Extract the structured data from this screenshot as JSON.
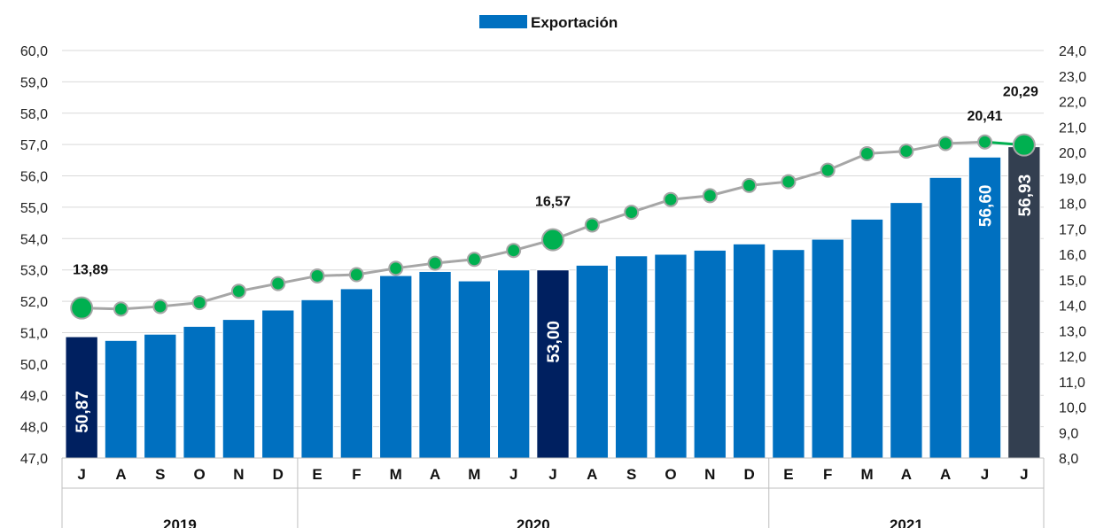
{
  "chart_data": {
    "type": "bar",
    "legend": {
      "label": "Exportación",
      "position": "top-center"
    },
    "colors": {
      "bar": "#0070c0",
      "bar_highlight": "#002060",
      "bar_last": "#333f50",
      "line": "#a6a6a6",
      "line_recent": "#00b050",
      "marker": "#00b050",
      "grid": "#d9d9d9"
    },
    "categories": [
      "J",
      "A",
      "S",
      "O",
      "N",
      "D",
      "E",
      "F",
      "M",
      "A",
      "M",
      "J",
      "J",
      "A",
      "S",
      "O",
      "N",
      "D",
      "E",
      "F",
      "M",
      "A",
      "A",
      "J",
      "J"
    ],
    "years": [
      {
        "label": "2019",
        "start": 0,
        "end": 5
      },
      {
        "label": "2020",
        "start": 6,
        "end": 17
      },
      {
        "label": "2021",
        "start": 18,
        "end": 24
      }
    ],
    "series": [
      {
        "name": "Exportación",
        "axis": "left",
        "values": [
          50.87,
          50.75,
          50.95,
          51.2,
          51.42,
          51.72,
          52.05,
          52.4,
          52.82,
          52.95,
          52.65,
          53.0,
          53.0,
          53.15,
          53.45,
          53.5,
          53.63,
          53.83,
          53.65,
          53.98,
          54.62,
          55.15,
          55.95,
          56.6,
          56.93
        ]
      },
      {
        "axis": "right",
        "values": [
          13.89,
          13.85,
          13.95,
          14.1,
          14.55,
          14.85,
          15.15,
          15.2,
          15.45,
          15.65,
          15.8,
          16.15,
          16.57,
          17.15,
          17.65,
          18.15,
          18.3,
          18.7,
          18.85,
          19.3,
          19.95,
          20.05,
          20.35,
          20.41,
          20.29
        ]
      }
    ],
    "bar_labels": [
      {
        "index": 0,
        "text": "50,87"
      },
      {
        "index": 12,
        "text": "53,00"
      },
      {
        "index": 23,
        "text": "56,60"
      },
      {
        "index": 24,
        "text": "56,93"
      }
    ],
    "line_labels": [
      {
        "index": 0,
        "text": "13,89"
      },
      {
        "index": 12,
        "text": "16,57"
      },
      {
        "index": 23,
        "text": "20,41"
      },
      {
        "index": 24,
        "text": "20,29"
      }
    ],
    "highlight_indices": [
      0,
      12
    ],
    "last_index": 24,
    "big_marker_indices": [
      0,
      12,
      24
    ],
    "recent_line_from": 23,
    "yleft": {
      "min": 47,
      "max": 60,
      "step": 1,
      "ticks": [
        "47,0",
        "48,0",
        "49,0",
        "50,0",
        "51,0",
        "52,0",
        "53,0",
        "54,0",
        "55,0",
        "56,0",
        "57,0",
        "58,0",
        "59,0",
        "60,0"
      ]
    },
    "yright": {
      "min": 8,
      "max": 24,
      "step": 1,
      "ticks": [
        "8,0",
        "9,0",
        "10,0",
        "11,0",
        "12,0",
        "13,0",
        "14,0",
        "15,0",
        "16,0",
        "17,0",
        "18,0",
        "19,0",
        "20,0",
        "21,0",
        "22,0",
        "23,0",
        "24,0"
      ]
    },
    "grid": true
  }
}
